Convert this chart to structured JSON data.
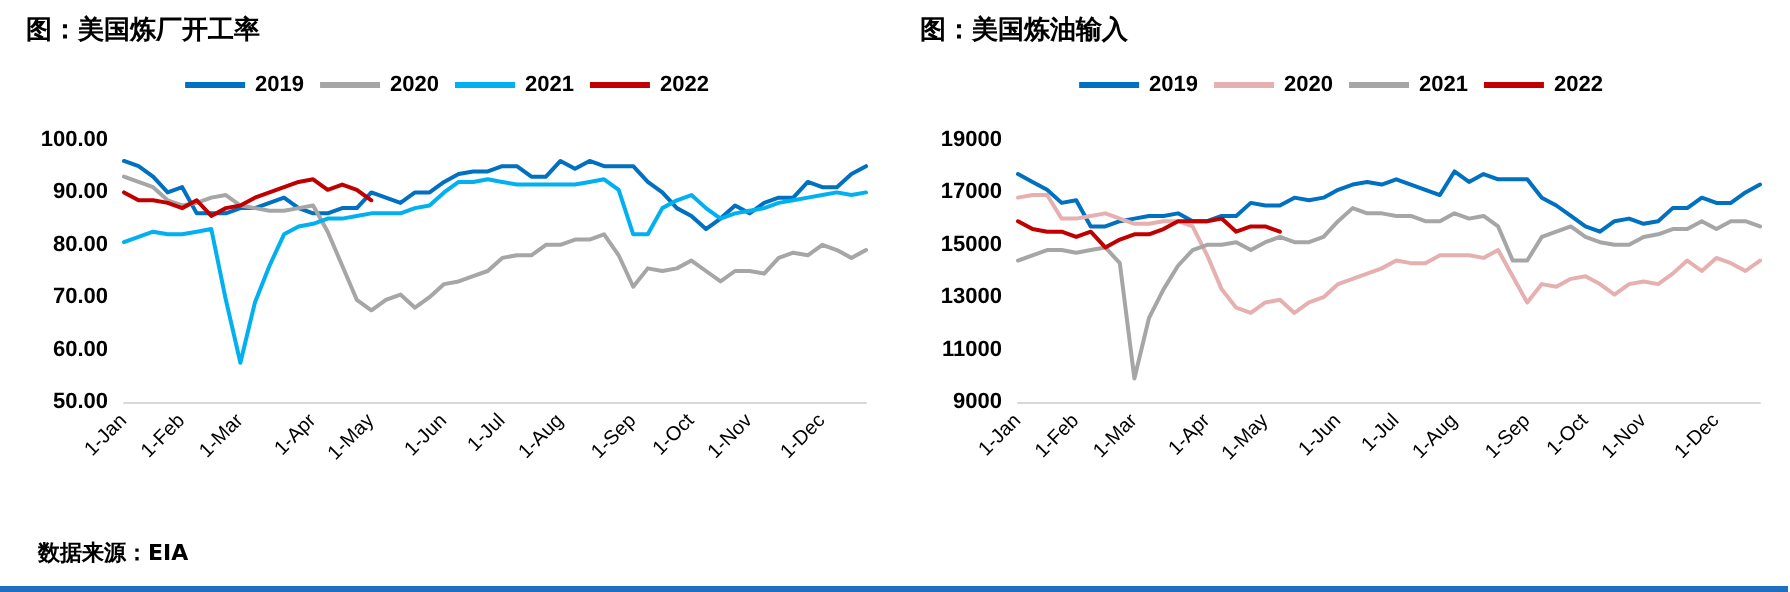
{
  "chart_data": [
    {
      "type": "line",
      "title": "图：美国炼厂开工率",
      "annotations": [
        "数据来源：EIA"
      ],
      "categories": [
        "1-Jan",
        null,
        null,
        null,
        "1-Feb",
        null,
        null,
        null,
        "1-Mar",
        null,
        null,
        null,
        null,
        "1-Apr",
        null,
        null,
        null,
        "1-May",
        null,
        null,
        null,
        null,
        "1-Jun",
        null,
        null,
        null,
        "1-Jul",
        null,
        null,
        null,
        "1-Aug",
        null,
        null,
        null,
        null,
        "1-Sep",
        null,
        null,
        null,
        "1-Oct",
        null,
        null,
        null,
        "1-Nov",
        null,
        null,
        null,
        null,
        "1-Dec",
        null,
        null,
        null
      ],
      "series": [
        {
          "name": "2019",
          "color": "#0070c0",
          "values": [
            96,
            95,
            93,
            90,
            91,
            86,
            86,
            86,
            87,
            87,
            88,
            89,
            87,
            86,
            86,
            87,
            87,
            90,
            89,
            88,
            90,
            90,
            92,
            93.5,
            94,
            94,
            95,
            95,
            93,
            93,
            96,
            94.5,
            96,
            95,
            95,
            95,
            92,
            90,
            87,
            85.5,
            83,
            85,
            87.5,
            86,
            88,
            89,
            89,
            92,
            91,
            91,
            93.5,
            95
          ]
        },
        {
          "name": "2020",
          "color": "#a6a6a6",
          "values": [
            93,
            92,
            91,
            88.5,
            87.5,
            88,
            89,
            89.5,
            87.5,
            87,
            86.5,
            86.5,
            87,
            87.5,
            82.5,
            76,
            69.5,
            67.5,
            69.5,
            70.5,
            68,
            70,
            72.5,
            73,
            74,
            75,
            77.5,
            78,
            78,
            80,
            80,
            81,
            81,
            82,
            78,
            72,
            75.5,
            75,
            75.5,
            77,
            75,
            73,
            75,
            75,
            74.5,
            77.5,
            78.5,
            78,
            80,
            79,
            77.5,
            79
          ]
        },
        {
          "name": "2021",
          "color": "#00b0f0",
          "values": [
            80.5,
            81.5,
            82.5,
            82,
            82,
            82.5,
            83,
            69.5,
            57.5,
            69,
            76,
            82,
            83.5,
            84,
            85,
            85,
            85.5,
            86,
            86,
            86,
            87,
            87.5,
            90,
            92,
            92,
            92.5,
            92,
            91.5,
            91.5,
            91.5,
            91.5,
            91.5,
            92,
            92.5,
            90.5,
            82,
            82,
            87,
            88.5,
            89.5,
            87,
            85,
            86,
            86.5,
            87,
            88,
            88.5,
            89,
            89.5,
            90,
            89.5,
            90
          ]
        },
        {
          "name": "2022",
          "color": "#c00000",
          "values": [
            90,
            88.5,
            88.5,
            88,
            87,
            88.5,
            85.5,
            87,
            87.5,
            89,
            90,
            91,
            92,
            92.5,
            90.5,
            91.5,
            90.5,
            88.5,
            null,
            null,
            null,
            null,
            null,
            null,
            null,
            null,
            null,
            null,
            null,
            null,
            null,
            null,
            null,
            null,
            null,
            null,
            null,
            null,
            null,
            null,
            null,
            null,
            null,
            null,
            null,
            null,
            null,
            null,
            null,
            null,
            null,
            null
          ]
        }
      ],
      "ylim": [
        50,
        100
      ],
      "yticks": [
        {
          "value": 50,
          "label": "50.00"
        },
        {
          "value": 60,
          "label": "60.00"
        },
        {
          "value": 70,
          "label": "70.00"
        },
        {
          "value": 80,
          "label": "80.00"
        },
        {
          "value": 90,
          "label": "90.00"
        },
        {
          "value": 100,
          "label": "100.00"
        }
      ],
      "legend": "top",
      "grid": false,
      "marker": "none",
      "line_style": "solid"
    },
    {
      "type": "line",
      "title": "图：美国炼油输入",
      "categories": [
        "1-Jan",
        null,
        null,
        null,
        "1-Feb",
        null,
        null,
        null,
        "1-Mar",
        null,
        null,
        null,
        null,
        "1-Apr",
        null,
        null,
        null,
        "1-May",
        null,
        null,
        null,
        null,
        "1-Jun",
        null,
        null,
        null,
        "1-Jul",
        null,
        null,
        null,
        "1-Aug",
        null,
        null,
        null,
        null,
        "1-Sep",
        null,
        null,
        null,
        "1-Oct",
        null,
        null,
        null,
        "1-Nov",
        null,
        null,
        null,
        null,
        "1-Dec",
        null,
        null,
        null
      ],
      "series": [
        {
          "name": "2019",
          "color": "#0070c0",
          "values": [
            17700,
            17400,
            17100,
            16600,
            16700,
            15700,
            15700,
            15900,
            16000,
            16100,
            16100,
            16200,
            15900,
            15900,
            16100,
            16100,
            16600,
            16500,
            16500,
            16800,
            16700,
            16800,
            17100,
            17300,
            17400,
            17300,
            17500,
            17300,
            17100,
            16900,
            17800,
            17400,
            17700,
            17500,
            17500,
            17500,
            16800,
            16500,
            16100,
            15700,
            15500,
            15900,
            16000,
            15800,
            15900,
            16400,
            16400,
            16800,
            16600,
            16600,
            17000,
            17300
          ]
        },
        {
          "name": "2020",
          "color": "#e6b0b0",
          "values": [
            16800,
            16900,
            16900,
            16000,
            16000,
            16100,
            16200,
            16000,
            15800,
            15800,
            15900,
            15900,
            15700,
            14600,
            13300,
            12600,
            12400,
            12800,
            12900,
            12400,
            12800,
            13000,
            13500,
            13700,
            13900,
            14100,
            14400,
            14300,
            14300,
            14600,
            14600,
            14600,
            14500,
            14800,
            13800,
            12800,
            13500,
            13400,
            13700,
            13800,
            13500,
            13100,
            13500,
            13600,
            13500,
            13900,
            14400,
            14000,
            14500,
            14300,
            14000,
            14400
          ]
        },
        {
          "name": "2021",
          "color": "#a6a6a6",
          "values": [
            14400,
            14600,
            14800,
            14800,
            14700,
            14800,
            14900,
            14300,
            9900,
            12200,
            13300,
            14200,
            14800,
            15000,
            15000,
            15100,
            14800,
            15100,
            15300,
            15100,
            15100,
            15300,
            15900,
            16400,
            16200,
            16200,
            16100,
            16100,
            15900,
            15900,
            16200,
            16000,
            16100,
            15700,
            14400,
            14400,
            15300,
            15500,
            15700,
            15300,
            15100,
            15000,
            15000,
            15300,
            15400,
            15600,
            15600,
            15900,
            15600,
            15900,
            15900,
            15700
          ]
        },
        {
          "name": "2022",
          "color": "#c00000",
          "values": [
            15900,
            15600,
            15500,
            15500,
            15300,
            15500,
            14900,
            15200,
            15400,
            15400,
            15600,
            15900,
            15900,
            15900,
            16000,
            15500,
            15700,
            15700,
            15500,
            null,
            null,
            null,
            null,
            null,
            null,
            null,
            null,
            null,
            null,
            null,
            null,
            null,
            null,
            null,
            null,
            null,
            null,
            null,
            null,
            null,
            null,
            null,
            null,
            null,
            null,
            null,
            null,
            null,
            null,
            null,
            null,
            null
          ]
        }
      ],
      "ylim": [
        9000,
        19000
      ],
      "yticks": [
        9000,
        11000,
        13000,
        15000,
        17000,
        19000
      ],
      "legend": "top",
      "grid": false,
      "marker": "none",
      "line_style": "solid"
    }
  ]
}
